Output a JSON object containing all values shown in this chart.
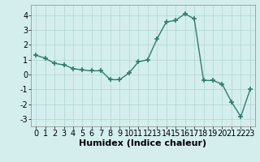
{
  "x": [
    0,
    1,
    2,
    3,
    4,
    5,
    6,
    7,
    8,
    9,
    10,
    11,
    12,
    13,
    14,
    15,
    16,
    17,
    18,
    19,
    20,
    21,
    22,
    23
  ],
  "y": [
    1.3,
    1.1,
    0.75,
    0.65,
    0.4,
    0.3,
    0.25,
    0.25,
    -0.35,
    -0.35,
    0.1,
    0.85,
    1.0,
    2.4,
    3.55,
    3.65,
    4.1,
    3.75,
    -0.4,
    -0.4,
    -0.65,
    -1.85,
    -2.85,
    -1.0
  ],
  "line_color": "#2e7d6e",
  "marker": "+",
  "marker_size": 4,
  "background_color": "#d4eeee",
  "grid_color_major": "#b0d4d4",
  "grid_color_minor": "#c8e8e8",
  "xlabel": "Humidex (Indice chaleur)",
  "xlabel_fontsize": 8,
  "tick_fontsize": 7,
  "ylim": [
    -3.5,
    4.7
  ],
  "yticks": [
    -3,
    -2,
    -1,
    0,
    1,
    2,
    3,
    4
  ],
  "xlim": [
    -0.5,
    23.5
  ],
  "xticks": [
    0,
    1,
    2,
    3,
    4,
    5,
    6,
    7,
    8,
    9,
    10,
    11,
    12,
    13,
    14,
    15,
    16,
    17,
    18,
    19,
    20,
    21,
    22,
    23
  ],
  "spine_color": "#888888",
  "linewidth": 1.0
}
